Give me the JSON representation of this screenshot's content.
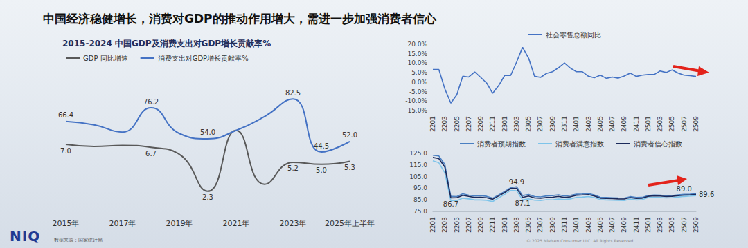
{
  "page": {
    "title": "中国经济稳健增长，消费对GDP的推动作用增大，需进一步加强消费者信心",
    "logo": "NIQ",
    "source": "数据来源：国家统计局",
    "copyright": "© 2025 Nielsen Consumer LLC. All Rights Reserved."
  },
  "chart_data": [
    {
      "type": "line",
      "title": "2015-2024 中国GDP及消费支出对GDP增长贡献率%",
      "categories": [
        "2015年",
        null,
        "2017年",
        null,
        "2019年",
        null,
        "2021年",
        null,
        "2023年",
        null,
        "2025年上半年"
      ],
      "series": [
        {
          "name": "GDP 同比增速",
          "color": "#595959",
          "axis": "y2",
          "values": [
            7.0,
            6.8,
            6.9,
            6.7,
            6.0,
            2.3,
            8.4,
            3.0,
            5.2,
            5.0,
            5.3
          ],
          "value_labels": [
            "7.0",
            null,
            null,
            "6.7",
            null,
            "2.3",
            null,
            null,
            "5.2",
            "5.0",
            "5.3"
          ]
        },
        {
          "name": "消费支出对GDP增长贡献率%",
          "color": "#4472c4",
          "values": [
            66.4,
            64.0,
            58.8,
            76.2,
            57.8,
            54.0,
            60.0,
            70.0,
            82.5,
            44.5,
            52.0
          ],
          "value_labels": [
            "66.4",
            null,
            null,
            "76.2",
            null,
            "54.0",
            null,
            null,
            "82.5",
            "44.5",
            "52.0"
          ]
        }
      ],
      "ylim": [
        0,
        100
      ],
      "yticks": [
        0,
        100
      ],
      "y2lim": [
        0,
        14
      ],
      "y2ticks": [
        0,
        14
      ],
      "tick_labels": "x",
      "grid": false,
      "legend": "top-left",
      "data_labels": true
    },
    {
      "type": "line",
      "categories": [
        "2201",
        null,
        "2203",
        null,
        "2205",
        null,
        "2207",
        null,
        "2209",
        null,
        "2211",
        null,
        "2301",
        null,
        "2303",
        null,
        "2305",
        null,
        "2307",
        null,
        "2309",
        null,
        "2311",
        null,
        "2401",
        null,
        "2403",
        null,
        "2405",
        null,
        "2407",
        null,
        "2409",
        null,
        "2411",
        null,
        "2501",
        null,
        "2503",
        null,
        "2505",
        null,
        "2507",
        null,
        "2509"
      ],
      "series": [
        {
          "name": "社会零售总额同比",
          "color": "#4472c4",
          "values": [
            6.7,
            6.7,
            -3.5,
            -11.1,
            -6.7,
            3.1,
            2.7,
            5.4,
            2.5,
            -0.5,
            -5.9,
            -1.8,
            3.5,
            3.5,
            10.6,
            18.4,
            12.7,
            3.1,
            2.5,
            4.6,
            5.5,
            7.6,
            10.1,
            7.4,
            5.5,
            5.5,
            3.1,
            2.3,
            3.7,
            2.0,
            2.7,
            2.1,
            3.2,
            4.8,
            3.0,
            3.7,
            4.0,
            4.0,
            5.9,
            5.1,
            6.4,
            4.8,
            3.7,
            3.4,
            3.0
          ]
        }
      ],
      "ylim": [
        -15,
        20
      ],
      "yticks": [
        {
          "value": -15,
          "label": "-15.0%"
        },
        {
          "value": -10,
          "label": "-10.0%"
        },
        {
          "value": -5,
          "label": "-5.0%"
        },
        {
          "value": 0,
          "label": "0.0%"
        },
        {
          "value": 5,
          "label": "5.0%"
        },
        {
          "value": 10,
          "label": "10.0%"
        },
        {
          "value": 15,
          "label": "15.0%"
        },
        {
          "value": 20,
          "label": "20.0%"
        }
      ],
      "grid": false,
      "legend": "top"
    },
    {
      "type": "line",
      "categories": [
        "2201",
        null,
        "2203",
        null,
        "2205",
        null,
        "2207",
        null,
        "2209",
        null,
        "2211",
        null,
        "2301",
        null,
        "2303",
        null,
        "2305",
        null,
        "2307",
        null,
        "2309",
        null,
        "2311",
        null,
        "2401",
        null,
        "2403",
        null,
        "2405",
        null,
        "2407",
        null,
        "2409",
        null,
        "2411",
        null,
        "2501",
        null,
        "2503",
        null,
        "2505",
        null,
        "2507",
        null,
        "2509"
      ],
      "series": [
        {
          "name": "消费者预期指数",
          "color": "#4a7fc1",
          "values": [
            123.4,
            122.8,
            115.5,
            88.0,
            87.8,
            90.2,
            89.0,
            88.3,
            88.5,
            88.0,
            86.4,
            89.2,
            92.2,
            95.5,
            96.3,
            88.6,
            89.6,
            87.8,
            87.5,
            88.3,
            88.6,
            89.3,
            88.2,
            88.8,
            89.8,
            90.0,
            90.4,
            89.1,
            87.2,
            87.0,
            86.8,
            86.6,
            86.5,
            87.7,
            87.0,
            87.1,
            88.7,
            89.1,
            88.9,
            88.5,
            88.7,
            89.2,
            89.7,
            89.9,
            90.2
          ]
        },
        {
          "name": "消费者满意指数",
          "color": "#7ec4ea",
          "values": [
            118.6,
            116.9,
            108.3,
            84.4,
            84.2,
            86.4,
            85.8,
            84.9,
            84.9,
            84.6,
            83.5,
            86.7,
            89.7,
            93.2,
            92.8,
            84.9,
            85.9,
            84.7,
            84.4,
            85.1,
            85.0,
            85.7,
            85.2,
            85.8,
            87.1,
            87.3,
            87.8,
            86.9,
            85.2,
            84.9,
            84.7,
            84.5,
            84.4,
            85.7,
            84.9,
            85.2,
            86.9,
            87.2,
            87.0,
            86.6,
            86.8,
            87.4,
            87.9,
            88.2,
            88.6
          ]
        },
        {
          "name": "消费者信心指数",
          "color": "#1b2a5b",
          "values": [
            121.5,
            120.5,
            113.2,
            86.7,
            86.8,
            88.9,
            87.9,
            87.0,
            87.2,
            86.8,
            85.5,
            88.3,
            91.2,
            94.7,
            94.9,
            87.1,
            88.2,
            86.6,
            86.3,
            87.0,
            87.2,
            87.9,
            87.0,
            87.6,
            88.9,
            89.1,
            89.4,
            88.2,
            86.4,
            86.2,
            86.0,
            85.8,
            85.7,
            86.9,
            86.2,
            86.4,
            88.0,
            88.4,
            88.2,
            87.8,
            88.0,
            88.5,
            89.0,
            89.2,
            89.6
          ],
          "value_labels": [
            null,
            null,
            null,
            "86.7",
            null,
            null,
            null,
            null,
            null,
            null,
            null,
            null,
            null,
            null,
            "94.9",
            "87.1",
            null,
            null,
            null,
            null,
            null,
            null,
            null,
            null,
            null,
            null,
            null,
            null,
            null,
            null,
            null,
            null,
            null,
            null,
            null,
            null,
            null,
            null,
            null,
            null,
            null,
            null,
            "89.0",
            null,
            "89.6"
          ]
        }
      ],
      "ylim": [
        75,
        125
      ],
      "yticks": [
        {
          "value": 75,
          "label": "75.0"
        },
        {
          "value": 85,
          "label": "85.0"
        },
        {
          "value": 95,
          "label": "95.0"
        },
        {
          "value": 105,
          "label": "105.0"
        },
        {
          "value": 115,
          "label": "115.0"
        },
        {
          "value": 125,
          "label": "125.0"
        }
      ],
      "grid": false,
      "legend": "top",
      "data_labels": true
    }
  ]
}
